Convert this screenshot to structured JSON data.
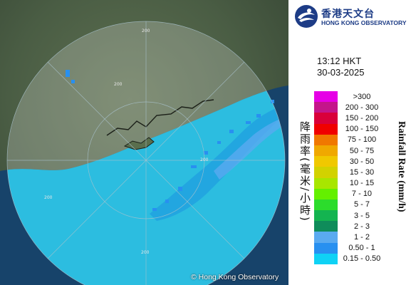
{
  "logo": {
    "chinese": "香港天文台",
    "english": "HONG KONG OBSERVATORY"
  },
  "time": "13:12 HKT",
  "date": "30-03-2025",
  "copyright": "© Hong Kong Observatory",
  "range_rings": [
    "200",
    "200",
    "200",
    "200",
    "200"
  ],
  "legend": {
    "title_en": "Rainfall Rate (mm/h)",
    "title_cn": "降雨率(毫米/小時)",
    "items": [
      {
        "label": ">300",
        "color": "#e600e6"
      },
      {
        "label": "200 - 300",
        "color": "#c4158a"
      },
      {
        "label": "150 - 200",
        "color": "#d9003a"
      },
      {
        "label": "100 - 150",
        "color": "#f00000"
      },
      {
        "label": "75 - 100",
        "color": "#f07800"
      },
      {
        "label": "50 - 75",
        "color": "#f0a800"
      },
      {
        "label": "30 - 50",
        "color": "#f0c800"
      },
      {
        "label": "15 - 30",
        "color": "#d2d200"
      },
      {
        "label": "10 - 15",
        "color": "#a8e600"
      },
      {
        "label": "7 - 10",
        "color": "#64f000"
      },
      {
        "label": "5 - 7",
        "color": "#2cdc2c"
      },
      {
        "label": "3 - 5",
        "color": "#14b450"
      },
      {
        "label": "2 - 3",
        "color": "#0f8c5a"
      },
      {
        "label": "1 - 2",
        "color": "#5aaaf0"
      },
      {
        "label": "0.50 - 1",
        "color": "#2890f0"
      },
      {
        "label": "0.15 - 0.50",
        "color": "#0fd2f5"
      }
    ]
  }
}
